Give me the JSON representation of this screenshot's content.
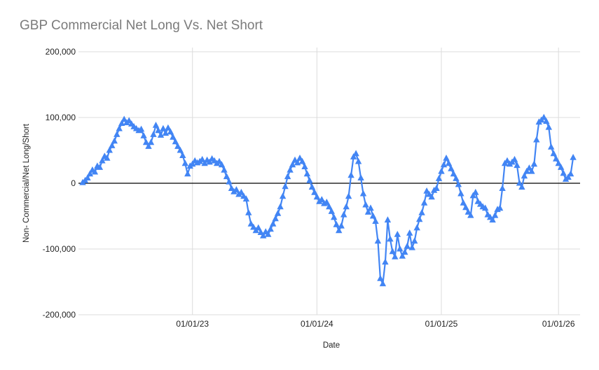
{
  "title": "GBP Commercial Net Long Vs. Net Short",
  "colors": {
    "series": "#4285f4",
    "title_text": "#7b7b7b",
    "grid": "#dcdcdc",
    "zero_line": "#000000",
    "tick_text": "#222222"
  },
  "chart_data": {
    "type": "line",
    "title": "GBP Commercial Net Long Vs. Net Short",
    "xlabel": "Date",
    "ylabel": "Non- Commercial/Net Long/Short",
    "marker": "triangle-up",
    "legend": "none",
    "grid": "on",
    "ylim": [
      -200000,
      200000
    ],
    "y_ticks": [
      {
        "value": 200000,
        "label": "200,000"
      },
      {
        "value": 100000,
        "label": "100,000"
      },
      {
        "value": 0,
        "label": "0"
      },
      {
        "value": -100000,
        "label": "-100,000"
      },
      {
        "value": -200000,
        "label": "-200,000"
      }
    ],
    "x_ticks": [
      {
        "index": 45,
        "label": "01/01/23"
      },
      {
        "index": 96,
        "label": "01/01/24"
      },
      {
        "index": 147,
        "label": "01/01/25"
      },
      {
        "index": 195,
        "label": "01/01/26"
      }
    ],
    "series_name": "Non-Commercial Net Long/Short",
    "values": [
      1000,
      4000,
      8000,
      14000,
      20000,
      17000,
      26000,
      24000,
      34000,
      41000,
      38000,
      50000,
      57000,
      64000,
      74000,
      83000,
      91000,
      97000,
      92000,
      95000,
      90000,
      86000,
      83000,
      80000,
      82000,
      72000,
      62000,
      56000,
      62000,
      74000,
      88000,
      80000,
      73000,
      83000,
      76000,
      84000,
      78000,
      70000,
      63000,
      56000,
      50000,
      42000,
      30000,
      14000,
      26000,
      29000,
      34000,
      31000,
      33000,
      36000,
      30000,
      35000,
      32000,
      37000,
      34000,
      30000,
      33000,
      28000,
      20000,
      10000,
      2000,
      -8000,
      -13000,
      -10000,
      -17000,
      -14000,
      -20000,
      -24000,
      -45000,
      -62000,
      -67000,
      -72000,
      -68000,
      -75000,
      -80000,
      -74000,
      -78000,
      -70000,
      -62000,
      -54000,
      -46000,
      -36000,
      -20000,
      -5000,
      10000,
      20000,
      28000,
      35000,
      31000,
      38000,
      33000,
      25000,
      14000,
      4000,
      -6000,
      -14000,
      -21000,
      -28000,
      -25000,
      -31000,
      -29000,
      -36000,
      -43000,
      -52000,
      -63000,
      -72000,
      -65000,
      -48000,
      -36000,
      -20000,
      12000,
      40000,
      45000,
      33000,
      8000,
      -16000,
      -33000,
      -44000,
      -38000,
      -50000,
      -58000,
      -88000,
      -145000,
      -153000,
      -120000,
      -56000,
      -85000,
      -104000,
      -112000,
      -78000,
      -100000,
      -111000,
      -105000,
      -96000,
      -76000,
      -98000,
      -88000,
      -68000,
      -55000,
      -45000,
      -30000,
      -12000,
      -17000,
      -21000,
      -11000,
      -8000,
      7000,
      18000,
      28000,
      38000,
      30000,
      22000,
      14000,
      7000,
      -2000,
      -16000,
      -30000,
      -37000,
      -44000,
      -49000,
      -19000,
      -14000,
      -28000,
      -32000,
      -36000,
      -38000,
      -48000,
      -52000,
      -56000,
      -49000,
      -40000,
      -38000,
      -8000,
      30000,
      34000,
      29000,
      32000,
      36000,
      27000,
      0,
      -6000,
      11000,
      18000,
      23000,
      18000,
      29000,
      66000,
      93000,
      96000,
      100000,
      94000,
      85000,
      55000,
      45000,
      37000,
      30000,
      24000,
      15000,
      6000,
      9000,
      14000,
      39000
    ]
  }
}
